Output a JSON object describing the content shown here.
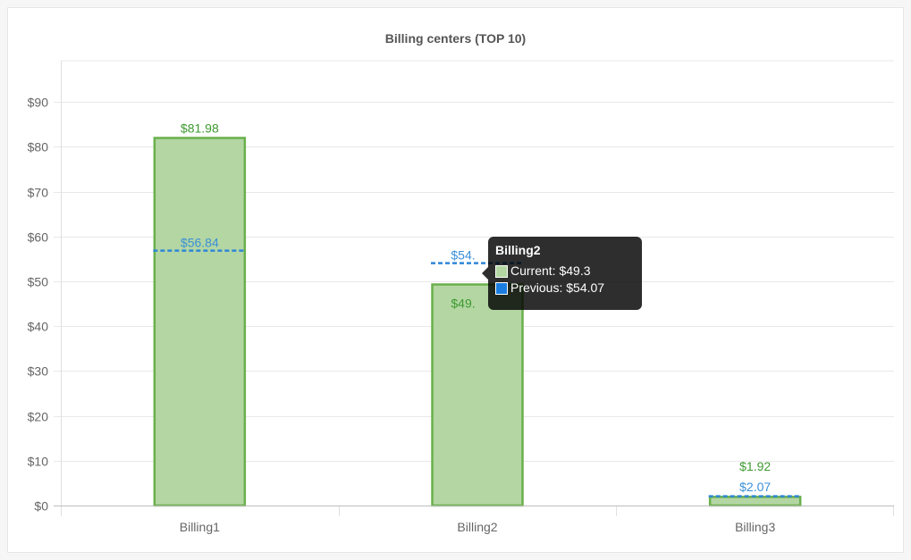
{
  "chart_data": {
    "type": "bar",
    "title": "Billing centers (TOP 10)",
    "categories": [
      "Billing1",
      "Billing2",
      "Billing3"
    ],
    "ylim": [
      0,
      95
    ],
    "yticks": [
      0,
      10,
      20,
      30,
      40,
      50,
      60,
      70,
      80,
      90
    ],
    "ytick_labels": [
      "$0",
      "$10",
      "$20",
      "$30",
      "$40",
      "$50",
      "$60",
      "$70",
      "$80",
      "$90"
    ],
    "grid": true,
    "series": [
      {
        "name": "Current",
        "type": "bar",
        "values": [
          81.98,
          49.3,
          1.92
        ],
        "labels": [
          "$81.98",
          "$49.",
          "$1.92"
        ],
        "fill_color": "#b3d6a3",
        "stroke_color": "#6ab04c",
        "label_color": "#3d9a2f"
      },
      {
        "name": "Previous",
        "type": "dashed-line-marker",
        "values": [
          56.84,
          54.07,
          2.07
        ],
        "labels": [
          "$56.84",
          "$54.",
          "$2.07"
        ],
        "color": "#2f86d8",
        "label_color": "#3b8fd9"
      }
    ],
    "tooltip": {
      "title": "Billing2",
      "rows": [
        {
          "swatch_color": "#b3d6a3",
          "text": "Current: $49.3"
        },
        {
          "swatch_color": "#1b7de0",
          "text": "Previous: $54.07"
        }
      ]
    }
  }
}
